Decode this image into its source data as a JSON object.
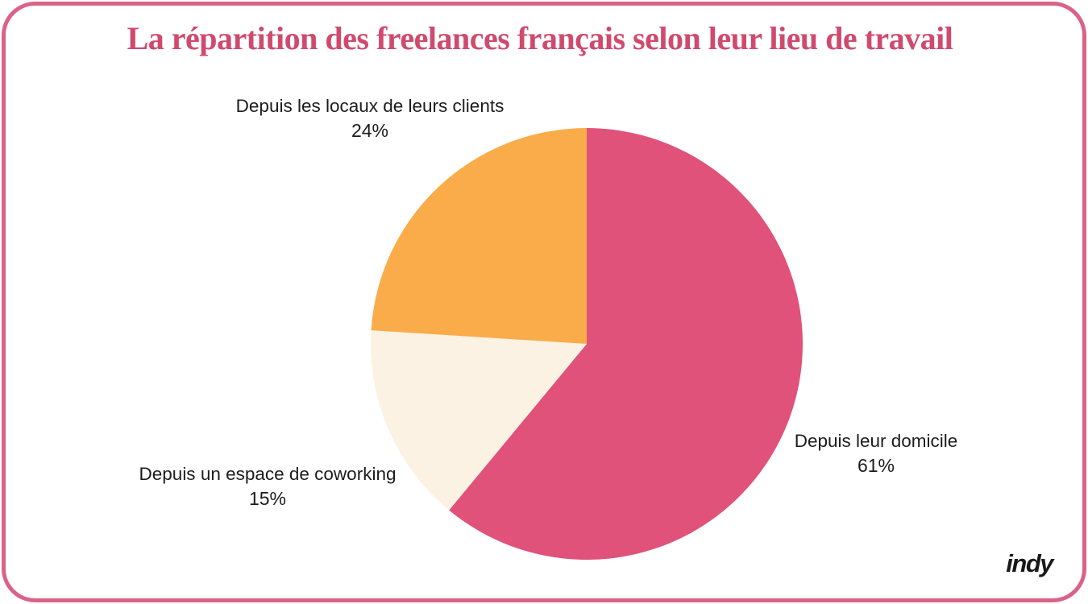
{
  "title": "La répartition des freelances français selon leur lieu de travail",
  "brand": {
    "logo_text": "indy"
  },
  "colors": {
    "title_text": "#d04a6e",
    "border": "#db6287",
    "label_text": "#1c1c1c",
    "slice_domicile": "#e0527a",
    "slice_coworking": "#fbf2e3",
    "slice_clients": "#faac4a"
  },
  "chart_data": {
    "type": "pie",
    "title": "La répartition des freelances français selon leur lieu de travail",
    "start_angle_deg": 0,
    "direction": "clockwise",
    "legend_position": "labels-around-pie",
    "slices": [
      {
        "id": "domicile",
        "label": "Depuis leur domicile",
        "value": 61,
        "display": "61%",
        "color": "#e0527a"
      },
      {
        "id": "coworking",
        "label": "Depuis un espace de coworking",
        "value": 15,
        "display": "15%",
        "color": "#fbf2e3"
      },
      {
        "id": "clients",
        "label": "Depuis les locaux de leurs clients",
        "value": 24,
        "display": "24%",
        "color": "#faac4a"
      }
    ]
  }
}
